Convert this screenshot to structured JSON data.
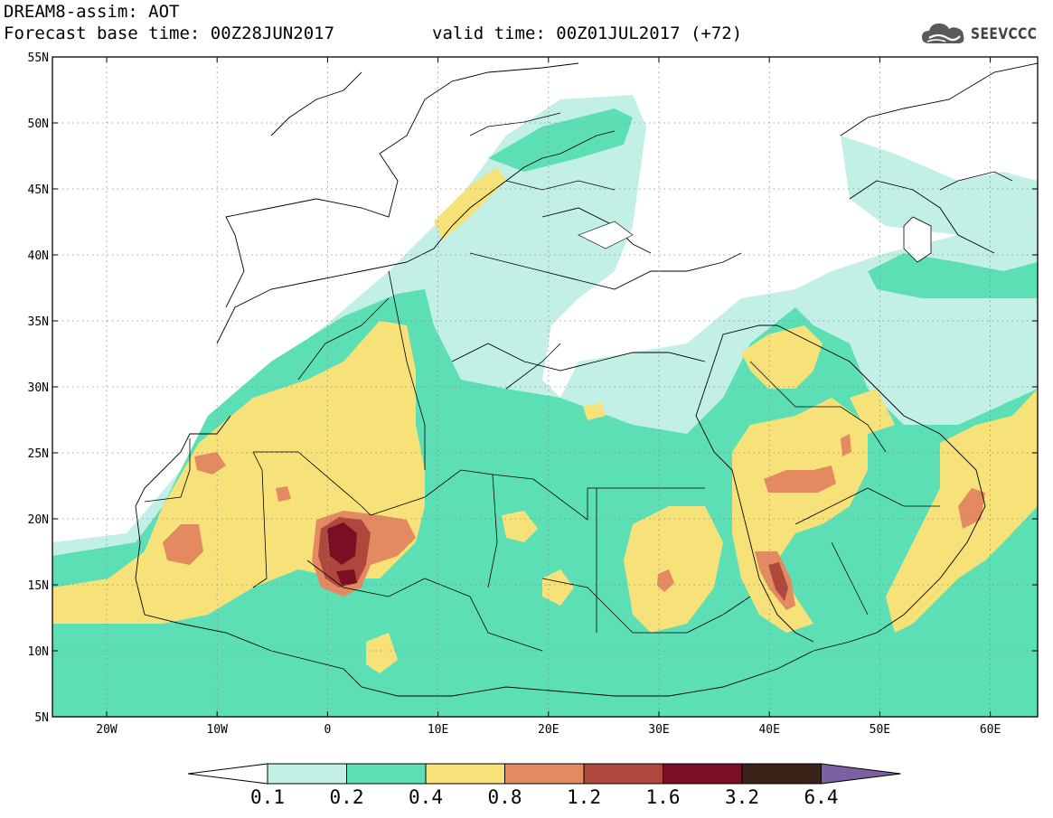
{
  "header": {
    "line1": "DREAM8-assim: AOT",
    "line2": "Forecast base time: 00Z28JUN2017",
    "line3": "valid time: 00Z01JUL2017 (+72)"
  },
  "logo": {
    "text": "SEEVCCC",
    "icon": "cloud-icon"
  },
  "axes": {
    "lat_labels": [
      "55N",
      "50N",
      "45N",
      "40N",
      "35N",
      "30N",
      "25N",
      "20N",
      "15N",
      "10N",
      "5N"
    ],
    "lon_labels": [
      "20W",
      "10W",
      "0",
      "10E",
      "20E",
      "30E",
      "40E",
      "50E",
      "60E"
    ]
  },
  "colorbar": {
    "levels": [
      "0.1",
      "0.2",
      "0.4",
      "0.8",
      "1.2",
      "1.6",
      "3.2",
      "6.4"
    ],
    "colors": [
      "#ffffff",
      "#c2f0e6",
      "#5ddfb5",
      "#f7e27a",
      "#e48a61",
      "#b0473c",
      "#7a0f23",
      "#3a2218",
      "#7d60a0"
    ]
  },
  "colors": {
    "c1": "#c2f0e6",
    "c2": "#5ddfb5",
    "c3": "#f7e27a",
    "c4": "#e48a61",
    "c5": "#b0473c",
    "c6": "#7a0f23"
  }
}
